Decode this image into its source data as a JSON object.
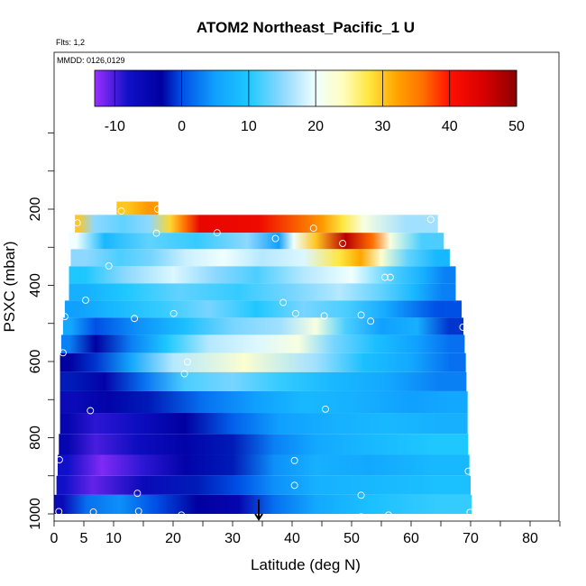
{
  "chart_data": {
    "type": "heatmap",
    "title": "ATOM2 Northeast_Pacific_1 U",
    "flights_note": "Flts: 1,2",
    "dates_note": "MMDD: 0126,0129",
    "xlabel": "Latitude (deg N)",
    "ylabel": "PSXC (mbar)",
    "xlim": [
      0,
      85
    ],
    "ylim": [
      1000,
      0
    ],
    "x_ticks": [
      0,
      5,
      10,
      20,
      30,
      40,
      50,
      60,
      70,
      80
    ],
    "y_ticks": [
      200,
      400,
      600,
      800,
      1000
    ],
    "colorbar": {
      "range": [
        -13,
        50
      ],
      "ticks": [
        -10,
        0,
        10,
        20,
        30,
        40,
        50
      ],
      "stops": [
        {
          "v": -13,
          "c": "#9b30ff"
        },
        {
          "v": -8,
          "c": "#1010c8"
        },
        {
          "v": -3,
          "c": "#0000a0"
        },
        {
          "v": 0,
          "c": "#0050e6"
        },
        {
          "v": 5,
          "c": "#10a0ff"
        },
        {
          "v": 10,
          "c": "#1ec8ff"
        },
        {
          "v": 15,
          "c": "#8ed8ff"
        },
        {
          "v": 20,
          "c": "#f0ffff"
        },
        {
          "v": 24,
          "c": "#fffec0"
        },
        {
          "v": 28,
          "c": "#ffe640"
        },
        {
          "v": 32,
          "c": "#ffa500"
        },
        {
          "v": 36,
          "c": "#ff7000"
        },
        {
          "v": 40,
          "c": "#ff1000"
        },
        {
          "v": 45,
          "c": "#d80000"
        },
        {
          "v": 50,
          "c": "#8b0000"
        }
      ]
    },
    "pressure_bands": [
      {
        "p_top": 180,
        "p_bot": 215,
        "lat_start": 10.5,
        "lat_end": 17.5,
        "segments": [
          [
            10.5,
            14,
            30
          ],
          [
            14,
            17.5,
            33
          ]
        ]
      },
      {
        "p_top": 215,
        "p_bot": 262,
        "lat_start": 3.5,
        "lat_end": 64.5,
        "segments": [
          [
            3.5,
            4.5,
            30
          ],
          [
            4.5,
            9,
            15
          ],
          [
            9,
            14,
            13
          ],
          [
            14,
            18,
            15
          ],
          [
            18,
            21,
            29
          ],
          [
            21,
            23,
            36
          ],
          [
            23,
            26,
            43
          ],
          [
            26,
            43,
            42
          ],
          [
            43,
            47,
            33
          ],
          [
            47,
            50,
            28
          ],
          [
            50,
            54,
            22
          ],
          [
            54,
            64.5,
            16
          ]
        ]
      },
      {
        "p_top": 262,
        "p_bot": 305,
        "lat_start": 2.5,
        "lat_end": 65.5,
        "segments": [
          [
            2.5,
            5,
            20
          ],
          [
            5,
            12,
            8
          ],
          [
            12,
            20,
            13
          ],
          [
            20,
            28,
            11
          ],
          [
            28,
            37,
            15
          ],
          [
            37,
            38.5,
            5
          ],
          [
            38.5,
            42,
            20
          ],
          [
            42,
            46,
            30
          ],
          [
            46,
            52,
            47
          ],
          [
            52,
            55,
            36
          ],
          [
            55,
            58,
            22
          ],
          [
            58,
            65.5,
            12
          ]
        ]
      },
      {
        "p_top": 305,
        "p_bot": 350,
        "lat_start": 2.8,
        "lat_end": 66.5,
        "segments": [
          [
            2.8,
            8,
            15
          ],
          [
            8,
            14,
            12
          ],
          [
            14,
            19,
            14
          ],
          [
            19,
            25,
            18
          ],
          [
            25,
            32,
            20
          ],
          [
            32,
            38,
            17
          ],
          [
            38,
            46,
            19
          ],
          [
            46,
            50,
            28
          ],
          [
            50,
            53,
            32
          ],
          [
            53,
            57,
            23
          ],
          [
            57,
            62,
            13
          ],
          [
            62,
            66.5,
            8
          ]
        ]
      },
      {
        "p_top": 350,
        "p_bot": 395,
        "lat_start": 2.5,
        "lat_end": 67.5,
        "segments": [
          [
            2.5,
            8,
            10
          ],
          [
            8,
            16,
            15
          ],
          [
            16,
            24,
            19
          ],
          [
            24,
            30,
            15
          ],
          [
            30,
            38,
            12
          ],
          [
            38,
            46,
            17
          ],
          [
            46,
            54,
            20
          ],
          [
            54,
            60,
            12
          ],
          [
            60,
            64,
            7
          ],
          [
            64,
            67.5,
            3
          ]
        ]
      },
      {
        "p_top": 395,
        "p_bot": 440,
        "lat_start": 2.5,
        "lat_end": 67.5,
        "segments": [
          [
            2.5,
            8,
            7
          ],
          [
            8,
            16,
            10
          ],
          [
            16,
            26,
            13
          ],
          [
            26,
            36,
            11
          ],
          [
            36,
            44,
            14
          ],
          [
            44,
            52,
            17
          ],
          [
            52,
            58,
            13
          ],
          [
            58,
            63,
            8
          ],
          [
            63,
            67.5,
            3
          ]
        ]
      },
      {
        "p_top": 440,
        "p_bot": 485,
        "lat_start": 1.8,
        "lat_end": 68.5,
        "segments": [
          [
            1.8,
            6,
            5
          ],
          [
            6,
            14,
            8
          ],
          [
            14,
            22,
            11
          ],
          [
            22,
            30,
            14
          ],
          [
            30,
            38,
            10
          ],
          [
            38,
            46,
            14
          ],
          [
            46,
            52,
            12
          ],
          [
            52,
            60,
            6
          ],
          [
            60,
            68.5,
            0
          ]
        ]
      },
      {
        "p_top": 485,
        "p_bot": 530,
        "lat_start": 1.5,
        "lat_end": 68.8,
        "segments": [
          [
            1.5,
            4,
            6
          ],
          [
            4,
            10,
            0
          ],
          [
            10,
            18,
            4
          ],
          [
            18,
            26,
            9
          ],
          [
            26,
            34,
            14
          ],
          [
            34,
            42,
            16
          ],
          [
            42,
            46,
            22
          ],
          [
            46,
            52,
            12
          ],
          [
            52,
            58,
            5
          ],
          [
            58,
            64,
            7
          ],
          [
            64,
            68.8,
            -1
          ]
        ]
      },
      {
        "p_top": 530,
        "p_bot": 578,
        "lat_start": 1.2,
        "lat_end": 69,
        "segments": [
          [
            1.2,
            4,
            3
          ],
          [
            4,
            10,
            -3
          ],
          [
            10,
            16,
            3
          ],
          [
            16,
            22,
            10
          ],
          [
            22,
            30,
            17
          ],
          [
            30,
            38,
            19
          ],
          [
            38,
            44,
            22
          ],
          [
            44,
            50,
            14
          ],
          [
            50,
            58,
            9
          ],
          [
            58,
            64,
            5
          ],
          [
            64,
            69,
            2
          ]
        ]
      },
      {
        "p_top": 578,
        "p_bot": 628,
        "lat_start": 1,
        "lat_end": 69.2,
        "segments": [
          [
            1,
            4,
            -3
          ],
          [
            4,
            10,
            -1
          ],
          [
            10,
            16,
            6
          ],
          [
            16,
            24,
            17
          ],
          [
            24,
            40,
            23
          ],
          [
            40,
            48,
            16
          ],
          [
            48,
            56,
            9
          ],
          [
            56,
            64,
            6
          ],
          [
            64,
            69.2,
            2
          ]
        ]
      },
      {
        "p_top": 628,
        "p_bot": 678,
        "lat_start": 1,
        "lat_end": 69.3,
        "segments": [
          [
            1,
            5,
            -2
          ],
          [
            5,
            12,
            -4
          ],
          [
            12,
            18,
            2
          ],
          [
            18,
            26,
            12
          ],
          [
            26,
            34,
            14
          ],
          [
            34,
            42,
            11
          ],
          [
            42,
            52,
            8
          ],
          [
            52,
            60,
            6
          ],
          [
            60,
            69.3,
            3
          ]
        ]
      },
      {
        "p_top": 678,
        "p_bot": 735,
        "lat_start": 1,
        "lat_end": 69.5,
        "segments": [
          [
            1,
            6,
            -6
          ],
          [
            6,
            12,
            -4
          ],
          [
            12,
            20,
            -2
          ],
          [
            20,
            30,
            2
          ],
          [
            30,
            38,
            5
          ],
          [
            38,
            46,
            8
          ],
          [
            46,
            56,
            7
          ],
          [
            56,
            64,
            5
          ],
          [
            64,
            69.5,
            6
          ]
        ]
      },
      {
        "p_top": 735,
        "p_bot": 790,
        "lat_start": 1,
        "lat_end": 69.5,
        "segments": [
          [
            1,
            4,
            -5
          ],
          [
            4,
            10,
            -9
          ],
          [
            10,
            18,
            -7
          ],
          [
            18,
            26,
            -3
          ],
          [
            26,
            34,
            1
          ],
          [
            34,
            42,
            5
          ],
          [
            42,
            52,
            7
          ],
          [
            52,
            60,
            8
          ],
          [
            60,
            69.5,
            7
          ]
        ]
      },
      {
        "p_top": 790,
        "p_bot": 845,
        "lat_start": 0.8,
        "lat_end": 69.6,
        "segments": [
          [
            0.8,
            4,
            -5
          ],
          [
            4,
            10,
            -10
          ],
          [
            10,
            18,
            -7
          ],
          [
            18,
            26,
            -4
          ],
          [
            26,
            34,
            -2
          ],
          [
            34,
            40,
            3
          ],
          [
            40,
            48,
            6
          ],
          [
            48,
            58,
            8
          ],
          [
            58,
            69.6,
            10
          ]
        ]
      },
      {
        "p_top": 845,
        "p_bot": 900,
        "lat_start": 0.6,
        "lat_end": 69.8,
        "segments": [
          [
            0.6,
            4,
            -8
          ],
          [
            4,
            12,
            -12
          ],
          [
            12,
            18,
            -9
          ],
          [
            18,
            26,
            -4
          ],
          [
            26,
            34,
            -2
          ],
          [
            34,
            40,
            4
          ],
          [
            40,
            48,
            7
          ],
          [
            48,
            58,
            6
          ],
          [
            58,
            69.8,
            8
          ]
        ]
      },
      {
        "p_top": 900,
        "p_bot": 950,
        "lat_start": 0.4,
        "lat_end": 70,
        "segments": [
          [
            0.4,
            3,
            -8
          ],
          [
            3,
            10,
            -11
          ],
          [
            10,
            20,
            -6
          ],
          [
            20,
            28,
            -2
          ],
          [
            28,
            34,
            0
          ],
          [
            34,
            40,
            4
          ],
          [
            40,
            48,
            7
          ],
          [
            48,
            58,
            8
          ],
          [
            58,
            70,
            9
          ]
        ]
      },
      {
        "p_top": 950,
        "p_bot": 1000,
        "lat_start": 0,
        "lat_end": 70.2,
        "segments": [
          [
            0,
            3,
            -6
          ],
          [
            3,
            8,
            2
          ],
          [
            8,
            14,
            4
          ],
          [
            14,
            20,
            0
          ],
          [
            20,
            28,
            -3
          ],
          [
            28,
            34,
            -5
          ],
          [
            34,
            40,
            2
          ],
          [
            40,
            48,
            6
          ],
          [
            48,
            58,
            9
          ],
          [
            58,
            70.2,
            11
          ]
        ]
      }
    ],
    "sample_points": [
      {
        "lat": 11.3,
        "p": 205
      },
      {
        "lat": 17.4,
        "p": 200
      },
      {
        "lat": 3.9,
        "p": 236
      },
      {
        "lat": 63.3,
        "p": 227
      },
      {
        "lat": 43.6,
        "p": 250
      },
      {
        "lat": 27.4,
        "p": 262
      },
      {
        "lat": 17.2,
        "p": 263
      },
      {
        "lat": 37.2,
        "p": 277
      },
      {
        "lat": 48.5,
        "p": 290
      },
      {
        "lat": 9.2,
        "p": 349
      },
      {
        "lat": 55.6,
        "p": 379
      },
      {
        "lat": 56.5,
        "p": 379
      },
      {
        "lat": 5.3,
        "p": 439
      },
      {
        "lat": 38.5,
        "p": 445
      },
      {
        "lat": 1.8,
        "p": 482
      },
      {
        "lat": 13.5,
        "p": 487
      },
      {
        "lat": 20.1,
        "p": 474
      },
      {
        "lat": 40.6,
        "p": 474
      },
      {
        "lat": 45.4,
        "p": 480
      },
      {
        "lat": 51.6,
        "p": 478
      },
      {
        "lat": 53.2,
        "p": 494
      },
      {
        "lat": 68.7,
        "p": 510
      },
      {
        "lat": 1.5,
        "p": 577
      },
      {
        "lat": 22.4,
        "p": 601
      },
      {
        "lat": 21.9,
        "p": 632
      },
      {
        "lat": 6.1,
        "p": 729
      },
      {
        "lat": 45.6,
        "p": 725
      },
      {
        "lat": 0.9,
        "p": 858
      },
      {
        "lat": 40.4,
        "p": 860
      },
      {
        "lat": 69.6,
        "p": 888
      },
      {
        "lat": 40.4,
        "p": 925
      },
      {
        "lat": 14,
        "p": 946
      },
      {
        "lat": 51.6,
        "p": 951
      },
      {
        "lat": 0.8,
        "p": 994
      },
      {
        "lat": 6.6,
        "p": 995
      },
      {
        "lat": 14.2,
        "p": 993
      },
      {
        "lat": 21.4,
        "p": 1003
      },
      {
        "lat": 45.8,
        "p": 1010
      },
      {
        "lat": 51.6,
        "p": 1008
      },
      {
        "lat": 56.2,
        "p": 1003
      },
      {
        "lat": 69.9,
        "p": 996
      }
    ],
    "marker": {
      "lat": 34.4,
      "p": 1000
    }
  }
}
